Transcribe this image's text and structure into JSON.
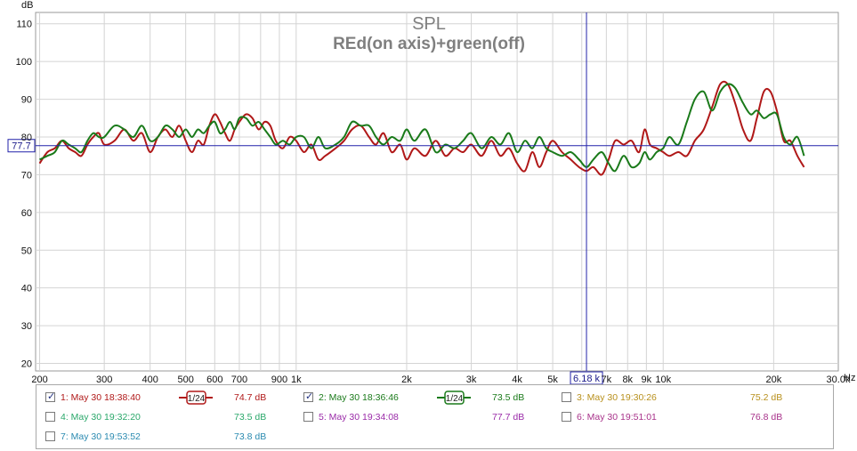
{
  "chart_data": {
    "type": "line",
    "title": "SPL",
    "subtitle": "REd(on axis)+green(off)",
    "ylabel": "dB",
    "xlabel": "Hz",
    "x_scale": "log",
    "xlim": [
      195,
      30000
    ],
    "ylim": [
      18,
      113
    ],
    "grid": true,
    "y_ticks": [
      20,
      30,
      40,
      50,
      60,
      70,
      80,
      90,
      100,
      110
    ],
    "x_tick_labels": [
      {
        "x": 200,
        "label": "200"
      },
      {
        "x": 300,
        "label": "300"
      },
      {
        "x": 400,
        "label": "400"
      },
      {
        "x": 500,
        "label": "500"
      },
      {
        "x": 600,
        "label": "600"
      },
      {
        "x": 700,
        "label": "700"
      },
      {
        "x": 900,
        "label": "900"
      },
      {
        "x": 1000,
        "label": "1k"
      },
      {
        "x": 2000,
        "label": "2k"
      },
      {
        "x": 3000,
        "label": "3k"
      },
      {
        "x": 4000,
        "label": "4k"
      },
      {
        "x": 5000,
        "label": "5k"
      },
      {
        "x": 7000,
        "label": "7k"
      },
      {
        "x": 8000,
        "label": "8k"
      },
      {
        "x": 9000,
        "label": "9k"
      },
      {
        "x": 10000,
        "label": "10k"
      },
      {
        "x": 20000,
        "label": "20k"
      },
      {
        "x": 30000,
        "label": "30.0k"
      }
    ],
    "cursor": {
      "x": 6180,
      "y": 77.7,
      "x_label": "6.18 k",
      "y_label": "77.7"
    },
    "series": [
      {
        "name": "1: May 30 18:38:40",
        "color": "#b01818",
        "points": [
          [
            200,
            73
          ],
          [
            210,
            76
          ],
          [
            220,
            77
          ],
          [
            230,
            79
          ],
          [
            240,
            77
          ],
          [
            250,
            76
          ],
          [
            260,
            75
          ],
          [
            270,
            78
          ],
          [
            280,
            80
          ],
          [
            290,
            81
          ],
          [
            300,
            78
          ],
          [
            320,
            79
          ],
          [
            340,
            82
          ],
          [
            360,
            79
          ],
          [
            380,
            81
          ],
          [
            400,
            76
          ],
          [
            420,
            80
          ],
          [
            440,
            82
          ],
          [
            460,
            80
          ],
          [
            480,
            83
          ],
          [
            500,
            79
          ],
          [
            520,
            76
          ],
          [
            540,
            79
          ],
          [
            560,
            78
          ],
          [
            580,
            83
          ],
          [
            600,
            86
          ],
          [
            620,
            84
          ],
          [
            640,
            81
          ],
          [
            660,
            79
          ],
          [
            680,
            82
          ],
          [
            700,
            84
          ],
          [
            730,
            86
          ],
          [
            760,
            85
          ],
          [
            790,
            82
          ],
          [
            820,
            84
          ],
          [
            850,
            83
          ],
          [
            880,
            79
          ],
          [
            920,
            77
          ],
          [
            960,
            80
          ],
          [
            1000,
            79
          ],
          [
            1050,
            76
          ],
          [
            1100,
            78
          ],
          [
            1150,
            74
          ],
          [
            1200,
            75
          ],
          [
            1280,
            77
          ],
          [
            1350,
            79
          ],
          [
            1420,
            82
          ],
          [
            1500,
            83
          ],
          [
            1580,
            80
          ],
          [
            1650,
            78
          ],
          [
            1730,
            81
          ],
          [
            1820,
            76
          ],
          [
            1920,
            78
          ],
          [
            2000,
            74
          ],
          [
            2100,
            77
          ],
          [
            2250,
            75
          ],
          [
            2400,
            79
          ],
          [
            2550,
            75
          ],
          [
            2700,
            77
          ],
          [
            2850,
            76
          ],
          [
            3000,
            78
          ],
          [
            3200,
            75
          ],
          [
            3400,
            79
          ],
          [
            3600,
            75
          ],
          [
            3800,
            77
          ],
          [
            4000,
            73
          ],
          [
            4200,
            71
          ],
          [
            4400,
            76
          ],
          [
            4600,
            72
          ],
          [
            4800,
            76
          ],
          [
            5000,
            79
          ],
          [
            5300,
            76
          ],
          [
            5600,
            74
          ],
          [
            5900,
            72
          ],
          [
            6180,
            71
          ],
          [
            6450,
            72
          ],
          [
            6800,
            70
          ],
          [
            7100,
            74
          ],
          [
            7400,
            79
          ],
          [
            7800,
            78
          ],
          [
            8200,
            79
          ],
          [
            8600,
            76
          ],
          [
            8900,
            82
          ],
          [
            9200,
            78
          ],
          [
            9600,
            77
          ],
          [
            10000,
            76
          ],
          [
            10400,
            75
          ],
          [
            11000,
            76
          ],
          [
            11600,
            75
          ],
          [
            12200,
            79
          ],
          [
            12900,
            82
          ],
          [
            13600,
            88
          ],
          [
            14300,
            94
          ],
          [
            15000,
            94
          ],
          [
            15700,
            89
          ],
          [
            16500,
            82
          ],
          [
            17300,
            79
          ],
          [
            18000,
            85
          ],
          [
            18800,
            92
          ],
          [
            19600,
            92
          ],
          [
            20400,
            87
          ],
          [
            21300,
            79
          ],
          [
            22200,
            79
          ],
          [
            23200,
            75
          ],
          [
            24200,
            72
          ]
        ]
      },
      {
        "name": "2: May 30 18:36:46",
        "color": "#1a7a1a",
        "points": [
          [
            200,
            74
          ],
          [
            210,
            75
          ],
          [
            220,
            76
          ],
          [
            230,
            79
          ],
          [
            240,
            78
          ],
          [
            250,
            77
          ],
          [
            260,
            76
          ],
          [
            270,
            79
          ],
          [
            280,
            81
          ],
          [
            290,
            80
          ],
          [
            300,
            80
          ],
          [
            320,
            83
          ],
          [
            340,
            82
          ],
          [
            360,
            80
          ],
          [
            380,
            83
          ],
          [
            400,
            79
          ],
          [
            420,
            80
          ],
          [
            440,
            83
          ],
          [
            460,
            82
          ],
          [
            480,
            80
          ],
          [
            500,
            82
          ],
          [
            520,
            80
          ],
          [
            540,
            82
          ],
          [
            560,
            81
          ],
          [
            580,
            83
          ],
          [
            600,
            84
          ],
          [
            620,
            81
          ],
          [
            640,
            82
          ],
          [
            660,
            84
          ],
          [
            680,
            82
          ],
          [
            700,
            85
          ],
          [
            730,
            85
          ],
          [
            760,
            83
          ],
          [
            790,
            84
          ],
          [
            820,
            82
          ],
          [
            850,
            80
          ],
          [
            880,
            78
          ],
          [
            920,
            79
          ],
          [
            960,
            78
          ],
          [
            1000,
            80
          ],
          [
            1050,
            80
          ],
          [
            1100,
            77
          ],
          [
            1150,
            80
          ],
          [
            1200,
            77
          ],
          [
            1280,
            78
          ],
          [
            1350,
            80
          ],
          [
            1420,
            84
          ],
          [
            1500,
            83
          ],
          [
            1580,
            83
          ],
          [
            1650,
            80
          ],
          [
            1730,
            78
          ],
          [
            1820,
            80
          ],
          [
            1920,
            79
          ],
          [
            2000,
            82
          ],
          [
            2100,
            79
          ],
          [
            2250,
            82
          ],
          [
            2400,
            76
          ],
          [
            2550,
            78
          ],
          [
            2700,
            77
          ],
          [
            2850,
            79
          ],
          [
            3000,
            81
          ],
          [
            3200,
            77
          ],
          [
            3400,
            80
          ],
          [
            3600,
            78
          ],
          [
            3800,
            81
          ],
          [
            4000,
            76
          ],
          [
            4200,
            79
          ],
          [
            4400,
            77
          ],
          [
            4600,
            80
          ],
          [
            4800,
            77
          ],
          [
            5000,
            76
          ],
          [
            5300,
            75
          ],
          [
            5600,
            76
          ],
          [
            5900,
            74
          ],
          [
            6180,
            72
          ],
          [
            6450,
            74
          ],
          [
            6800,
            76
          ],
          [
            7100,
            73
          ],
          [
            7400,
            71
          ],
          [
            7800,
            75
          ],
          [
            8200,
            72
          ],
          [
            8600,
            73
          ],
          [
            8900,
            76
          ],
          [
            9200,
            74
          ],
          [
            9600,
            76
          ],
          [
            10000,
            77
          ],
          [
            10400,
            80
          ],
          [
            11000,
            78
          ],
          [
            11600,
            84
          ],
          [
            12200,
            90
          ],
          [
            12900,
            92
          ],
          [
            13600,
            87
          ],
          [
            14300,
            92
          ],
          [
            15000,
            94
          ],
          [
            15700,
            93
          ],
          [
            16500,
            89
          ],
          [
            17300,
            86
          ],
          [
            18000,
            87
          ],
          [
            18800,
            85
          ],
          [
            19600,
            86
          ],
          [
            20400,
            86
          ],
          [
            21300,
            80
          ],
          [
            22200,
            78
          ],
          [
            23200,
            80
          ],
          [
            24200,
            75
          ]
        ]
      }
    ]
  },
  "legend": {
    "items": [
      {
        "label": "1: May 30 18:38:40",
        "value": "74.7 dB",
        "checked": true,
        "smoothing": "1/24",
        "color": "#b01818"
      },
      {
        "label": "2: May 30 18:36:46",
        "value": "73.5 dB",
        "checked": true,
        "smoothing": "1/24",
        "color": "#1a7a1a"
      },
      {
        "label": "3: May 30 19:30:26",
        "value": "75.2 dB",
        "checked": false,
        "color": "#b8901c"
      },
      {
        "label": "4: May 30 19:32:20",
        "value": "73.5 dB",
        "checked": false,
        "color": "#2aa86a"
      },
      {
        "label": "5: May 30 19:34:08",
        "value": "77.7 dB",
        "checked": false,
        "color": "#9a2aa8"
      },
      {
        "label": "6: May 30 19:51:01",
        "value": "76.8 dB",
        "checked": false,
        "color": "#a8328a"
      },
      {
        "label": "7: May 30 19:53:52",
        "value": "73.8 dB",
        "checked": false,
        "color": "#2a8ab0"
      }
    ]
  }
}
